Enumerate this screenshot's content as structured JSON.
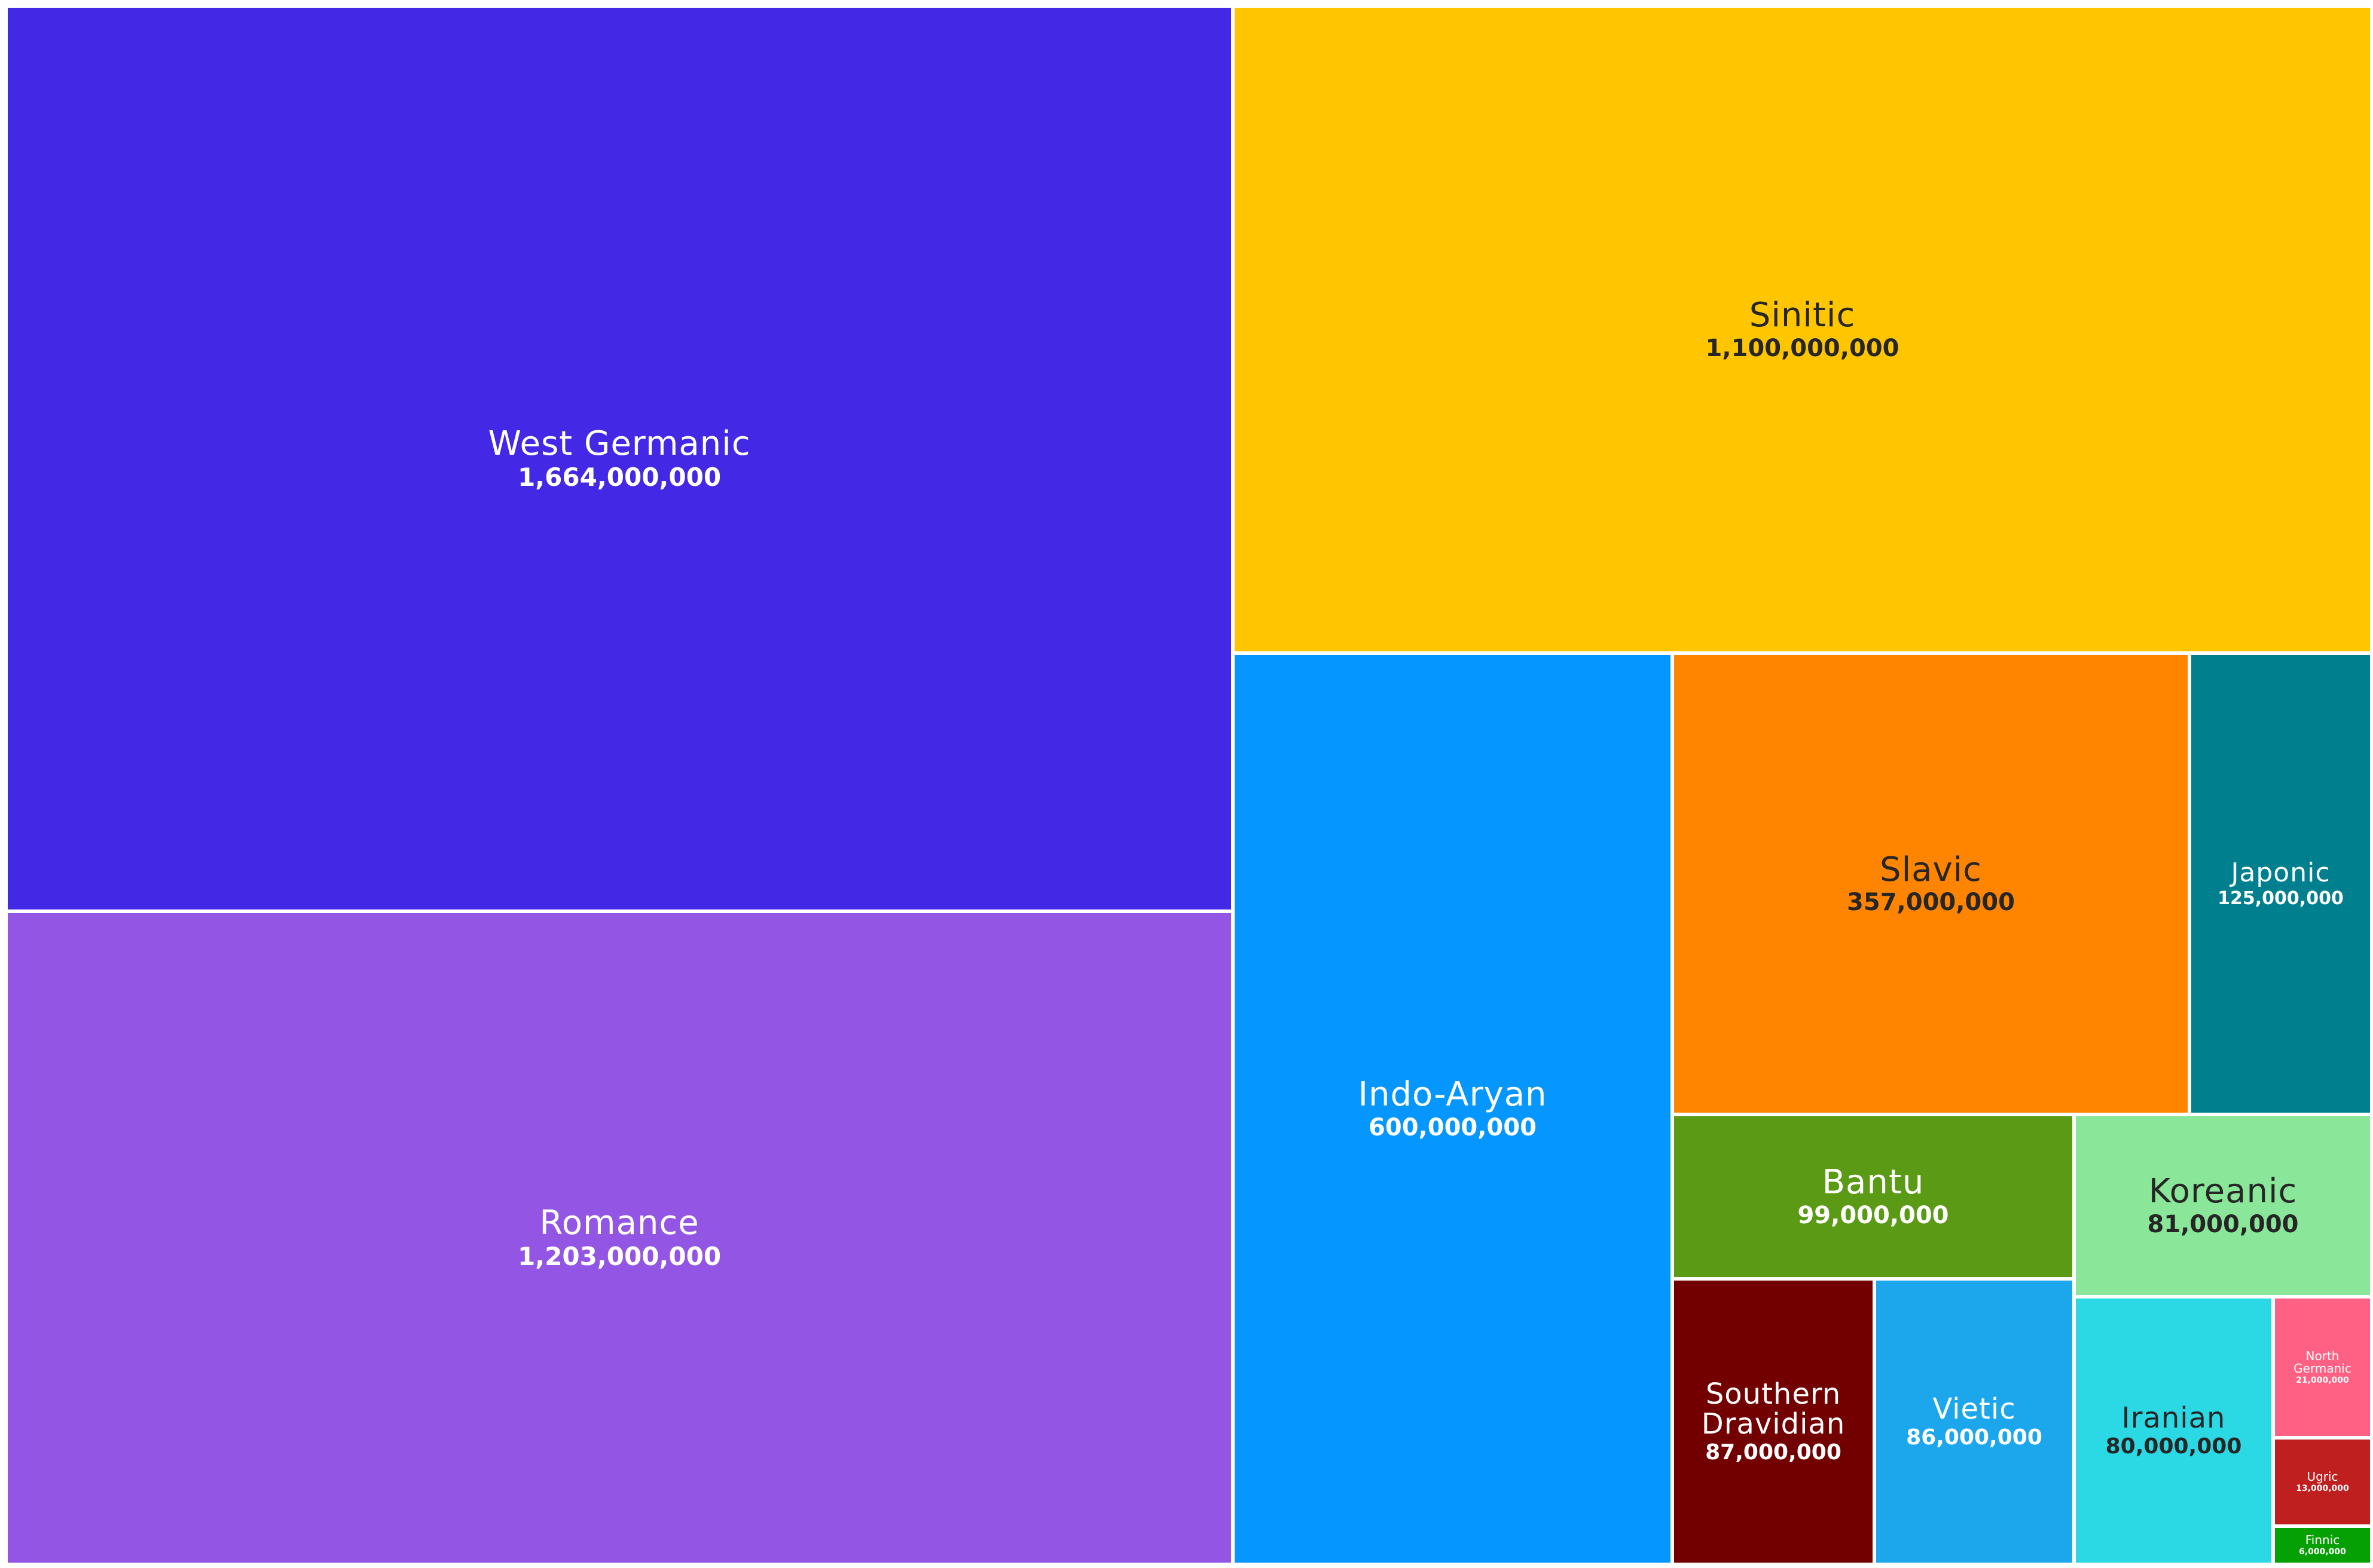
{
  "chart_data": {
    "type": "treemap",
    "title": "",
    "items": [
      {
        "name": "West Germanic",
        "value": 1664000000,
        "value_label": "1,664,000,000",
        "color": "#4329E6",
        "text": "light"
      },
      {
        "name": "Romance",
        "value": 1203000000,
        "value_label": "1,203,000,000",
        "color": "#9355E4",
        "text": "light"
      },
      {
        "name": "Sinitic",
        "value": 1100000000,
        "value_label": "1,100,000,000",
        "color": "#FFC600",
        "text": "dark"
      },
      {
        "name": "Indo-Aryan",
        "value": 600000000,
        "value_label": "600,000,000",
        "color": "#0596FF",
        "text": "light"
      },
      {
        "name": "Slavic",
        "value": 357000000,
        "value_label": "357,000,000",
        "color": "#FF8500",
        "text": "dark"
      },
      {
        "name": "Japonic",
        "value": 125000000,
        "value_label": "125,000,000",
        "color": "#00808F",
        "text": "light"
      },
      {
        "name": "Bantu",
        "value": 99000000,
        "value_label": "99,000,000",
        "color": "#5A9A15",
        "text": "light"
      },
      {
        "name": "Koreanic",
        "value": 81000000,
        "value_label": "81,000,000",
        "color": "#8AE698",
        "text": "dark"
      },
      {
        "name": "Southern Dravidian",
        "value": 87000000,
        "value_label": "87,000,000",
        "color": "#720000",
        "text": "light"
      },
      {
        "name": "Vietic",
        "value": 86000000,
        "value_label": "86,000,000",
        "color": "#1CA7EC",
        "text": "light"
      },
      {
        "name": "Iranian",
        "value": 80000000,
        "value_label": "80,000,000",
        "color": "#2AD9E3",
        "text": "dark"
      },
      {
        "name": "North Germanic",
        "value": 21000000,
        "value_label": "21,000,000",
        "color": "#FF6184",
        "text": "light"
      },
      {
        "name": "Ugric",
        "value": 13000000,
        "value_label": "13,000,000",
        "color": "#BF1F1F",
        "text": "light"
      },
      {
        "name": "Finnic",
        "value": 6000000,
        "value_label": "6,000,000",
        "color": "#05A004",
        "text": "light"
      }
    ]
  }
}
